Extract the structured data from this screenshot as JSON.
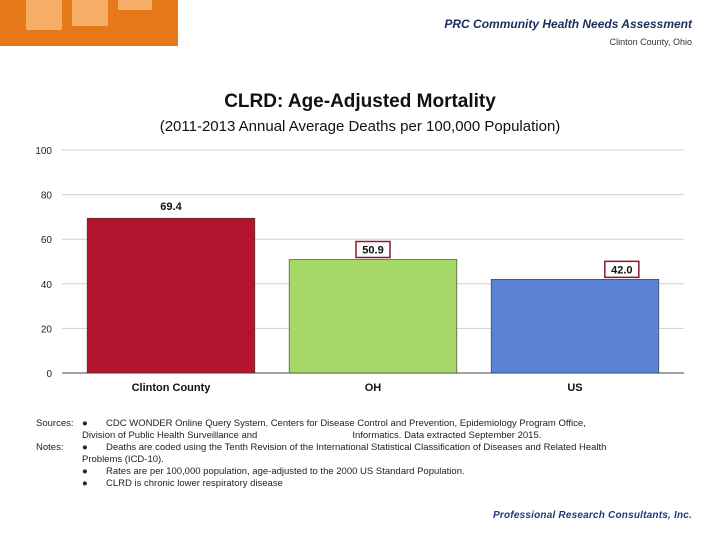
{
  "header": {
    "title": "PRC Community Health Needs Assessment",
    "subtitle": "Clinton County, Ohio"
  },
  "chart_data": {
    "type": "bar",
    "title": "CLRD: Age-Adjusted Mortality",
    "subtitle": "(2011-2013 Annual Average Deaths per 100,000 Population)",
    "categories": [
      "Clinton County",
      "OH",
      "US"
    ],
    "values": [
      69.4,
      50.9,
      42.0
    ],
    "value_labels": [
      "69.4",
      "50.9",
      "42.0"
    ],
    "colors": [
      "#b3152f",
      "#a5d867",
      "#5b84d6"
    ],
    "yticks": [
      "0",
      "20",
      "40",
      "60",
      "80",
      "100"
    ],
    "ylim": [
      0,
      100
    ],
    "xlabel": "",
    "ylabel": "",
    "grid": true
  },
  "notes": {
    "sources_label": "Sources:",
    "notes_label": "Notes:",
    "bullet": "●",
    "source_line1": "CDC WONDER Online Query System. Centers for Disease Control and Prevention, Epidemiology Program Office,",
    "source_line2": "Division of Public Health Surveillance and                                    Informatics. Data extracted September 2015.",
    "note1_line1": "Deaths are coded using the Tenth Revision of the International Statistical Classification of Diseases and Related Health",
    "note1_line2": "Problems (ICD-10).",
    "note2": "Rates are per 100,000 population, age-adjusted to the 2000 US Standard Population.",
    "note3": "CLRD is chronic lower respiratory disease"
  },
  "footer": {
    "logo_text": "Professional Research Consultants, Inc."
  }
}
